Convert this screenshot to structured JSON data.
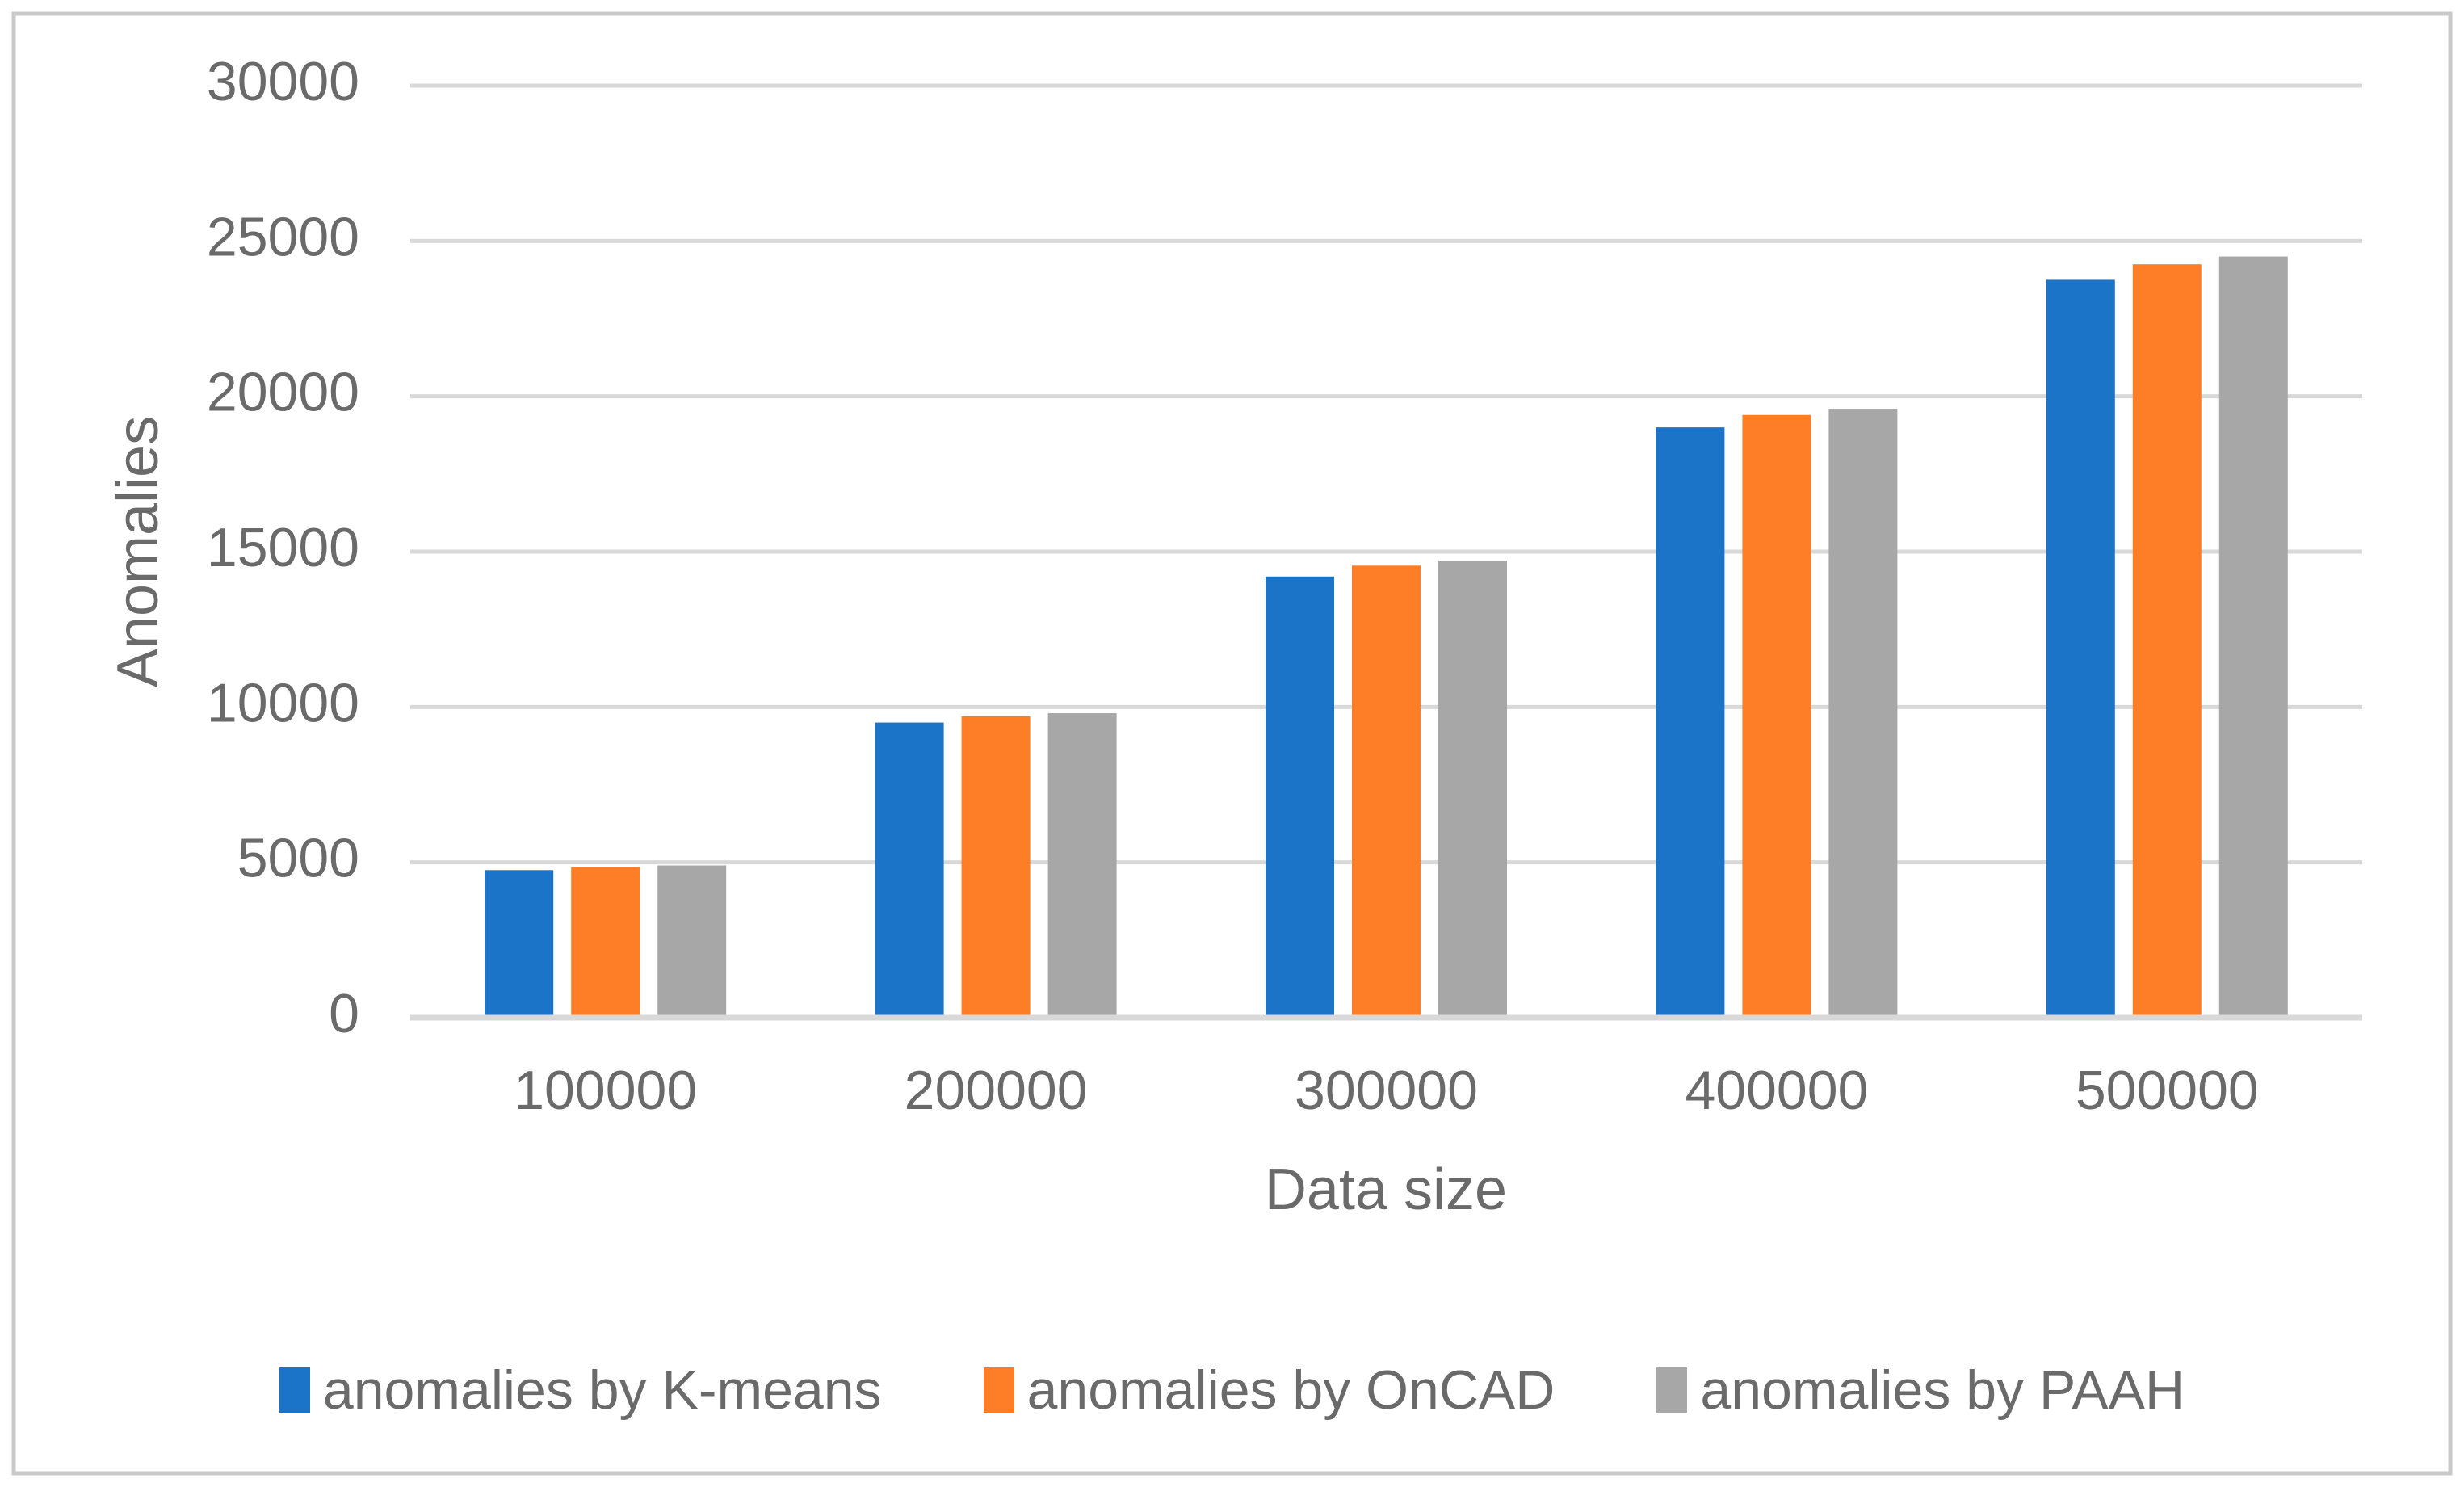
{
  "figure": {
    "background": "#FFFFFF",
    "border_color": "#C9C9C9"
  },
  "styles": {
    "text_color": "#6A6A6A",
    "gridline_color": "#D9D9D9",
    "axis_line_color": "#D9D9D9"
  },
  "chart_data": {
    "type": "bar",
    "title": "",
    "xlabel": "Data size",
    "ylabel": "Anomalies",
    "categories": [
      "100000",
      "200000",
      "300000",
      "400000",
      "500000"
    ],
    "series": [
      {
        "name": "anomalies by K-means",
        "color": "#1B74C8",
        "values": [
          4750,
          9500,
          14200,
          19000,
          23750
        ]
      },
      {
        "name": "anomalies by OnCAD",
        "color": "#FD7E27",
        "values": [
          4850,
          9700,
          14550,
          19400,
          24250
        ]
      },
      {
        "name": "anomalies by PAAH",
        "color": "#A7A7A7",
        "values": [
          4900,
          9800,
          14700,
          19600,
          24500
        ]
      }
    ],
    "ylim": [
      0,
      30000
    ],
    "yticks": [
      0,
      5000,
      10000,
      15000,
      20000,
      25000,
      30000
    ],
    "ytick_labels": [
      "0",
      "5000",
      "10000",
      "15000",
      "20000",
      "25000",
      "30000"
    ],
    "grid": "horizontal",
    "legend_position": "bottom"
  }
}
